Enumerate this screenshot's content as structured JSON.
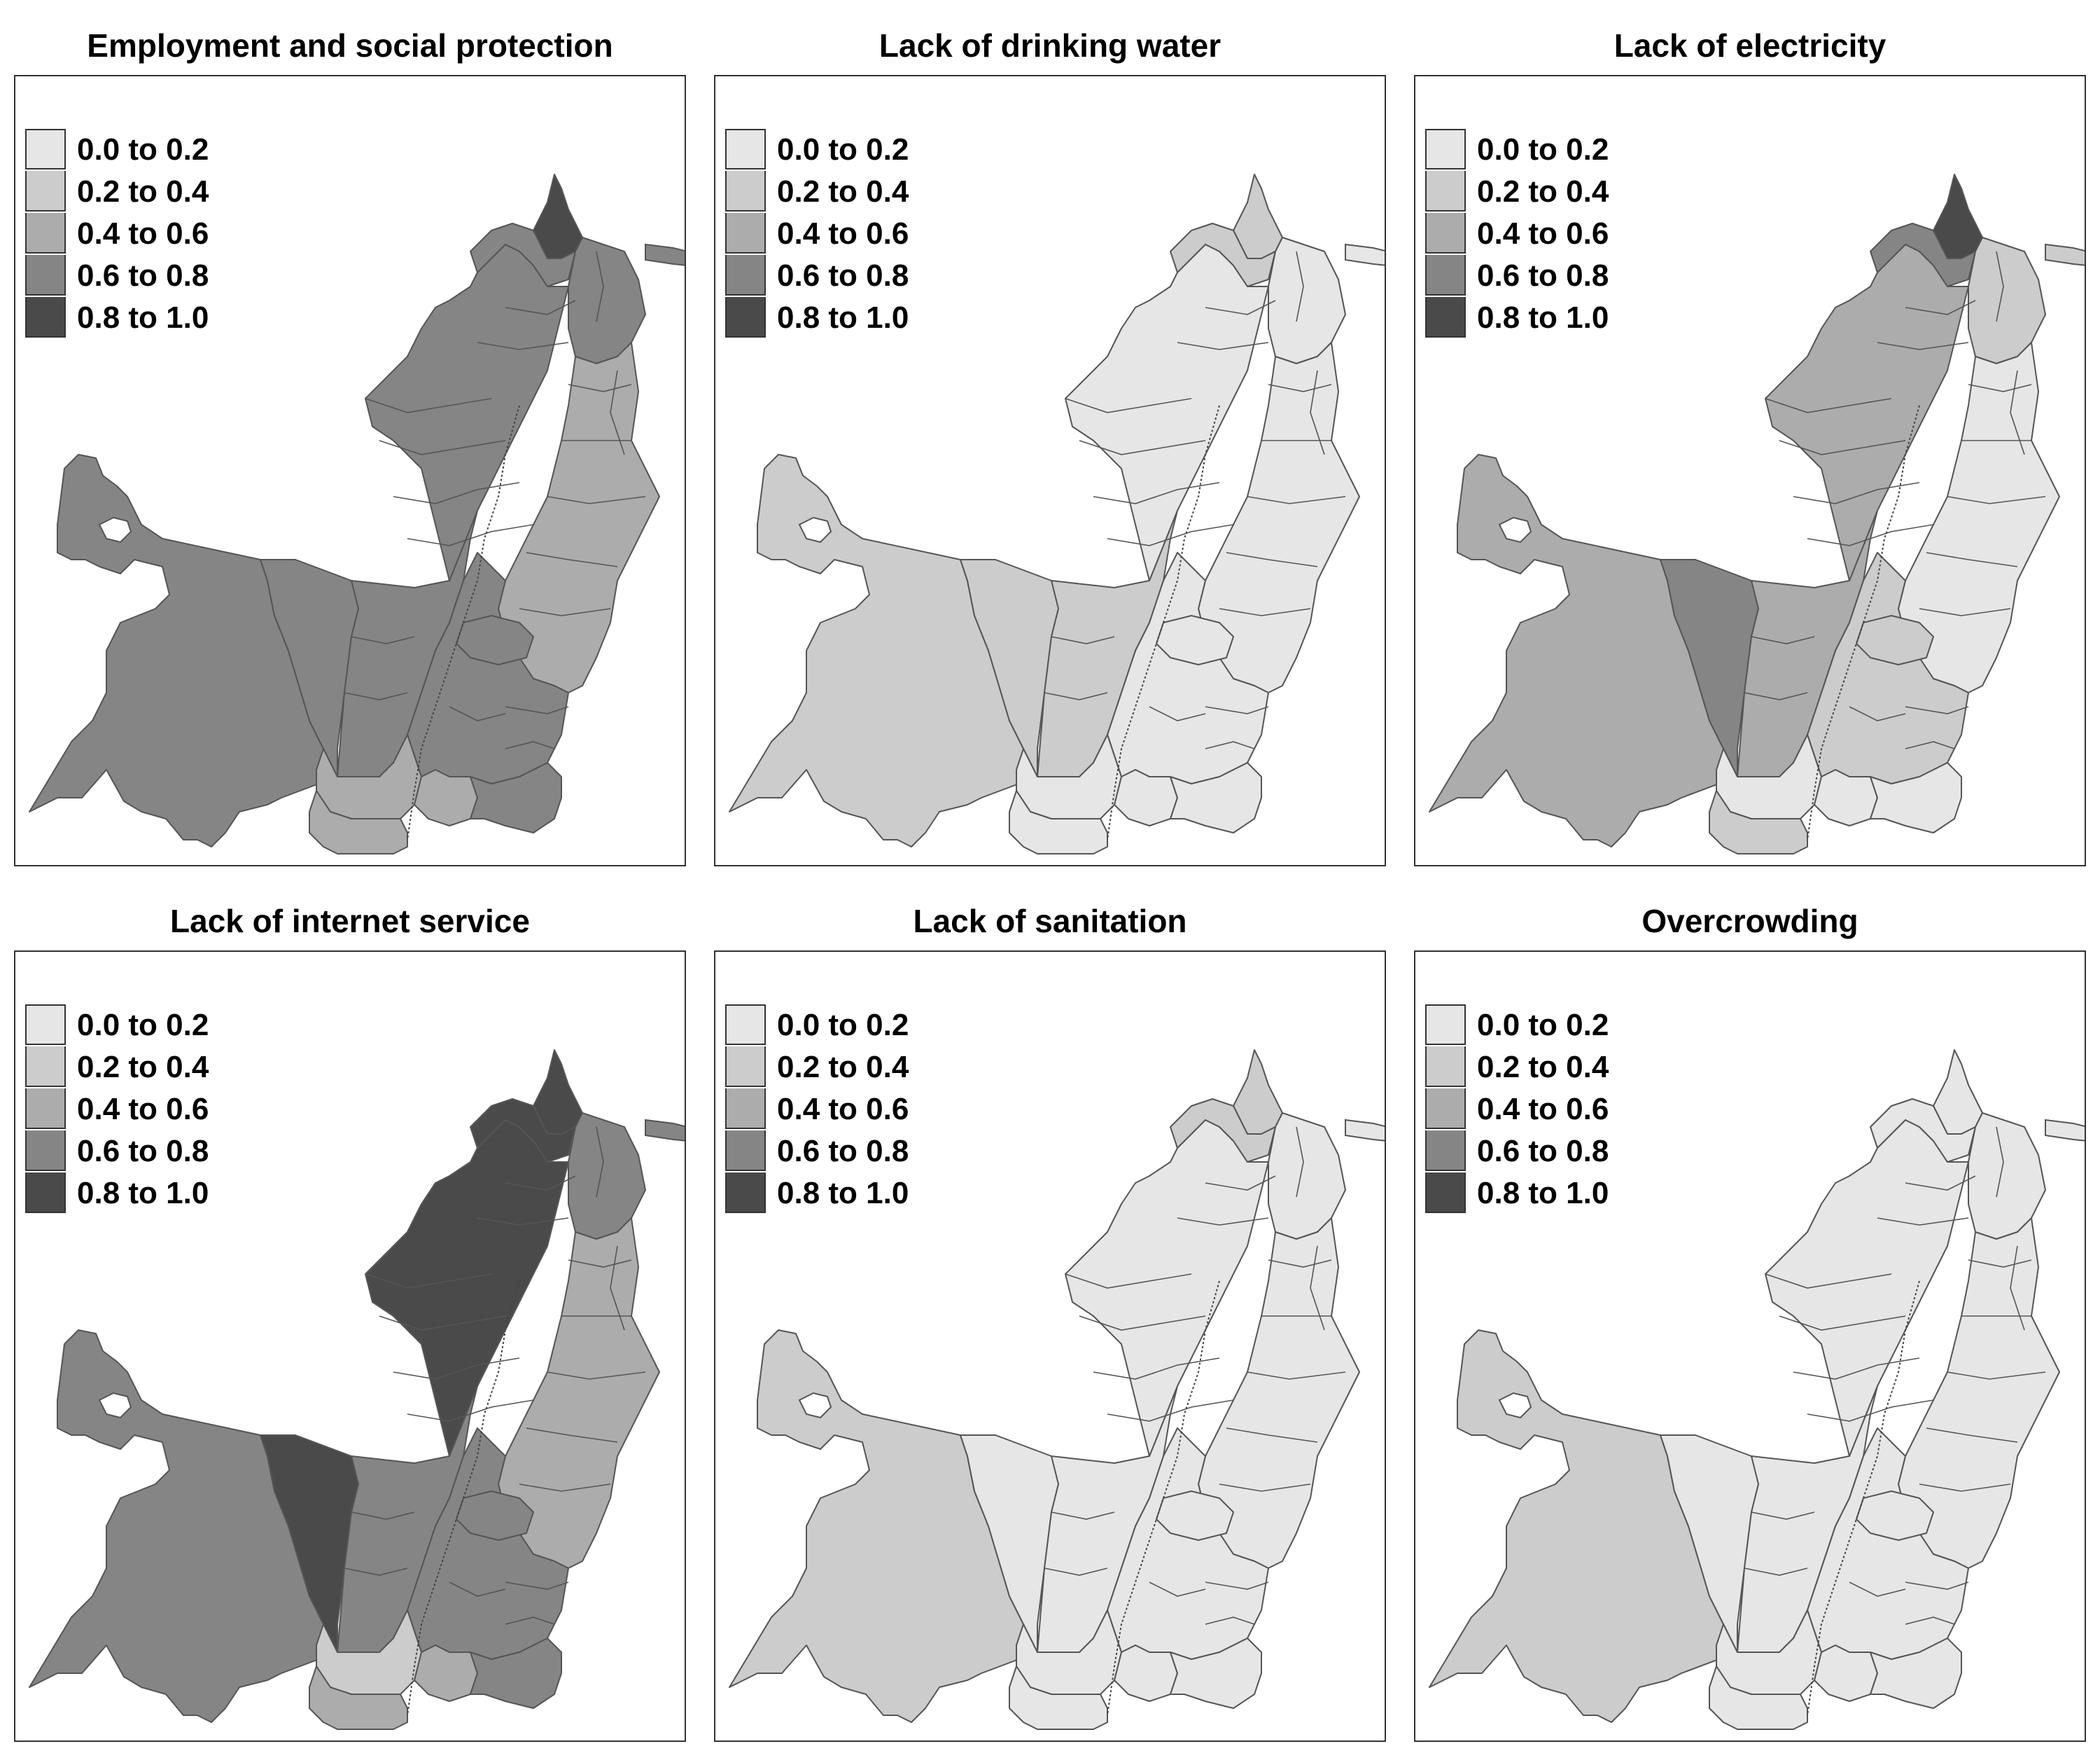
{
  "legend": {
    "classes": [
      {
        "label": "0.0 to 0.2",
        "color": "#e6e6e6"
      },
      {
        "label": "0.2 to 0.4",
        "color": "#cccccc"
      },
      {
        "label": "0.4 to 0.6",
        "color": "#acacac"
      },
      {
        "label": "0.6 to 0.8",
        "color": "#858585"
      },
      {
        "label": "0.8 to 1.0",
        "color": "#4a4a4a"
      }
    ],
    "border_color": "#555555"
  },
  "panels": [
    {
      "title": "Employment and social protection",
      "fills": {
        "west": 3,
        "central": 3,
        "narrow": 3,
        "north": 3,
        "northtip": 4,
        "northleft": 3,
        "neast": 3,
        "east": 2,
        "eastbelt": 3,
        "inner": 3,
        "south": 2,
        "southcenter": 2,
        "southeast": 3,
        "southwest": 2
      }
    },
    {
      "title": "Lack of drinking water",
      "fills": {
        "west": 1,
        "central": 1,
        "narrow": 1,
        "north": 0,
        "northtip": 1,
        "northleft": 1,
        "neast": 0,
        "east": 0,
        "eastbelt": 0,
        "inner": 0,
        "south": 0,
        "southcenter": 0,
        "southeast": 0,
        "southwest": 0
      }
    },
    {
      "title": "Lack of electricity",
      "fills": {
        "west": 2,
        "central": 3,
        "narrow": 2,
        "north": 2,
        "northtip": 4,
        "northleft": 3,
        "neast": 1,
        "east": 0,
        "eastbelt": 1,
        "inner": 1,
        "south": 0,
        "southcenter": 0,
        "southeast": 0,
        "southwest": 1
      }
    },
    {
      "title": "Lack of internet service",
      "fills": {
        "west": 3,
        "central": 4,
        "narrow": 3,
        "north": 4,
        "northtip": 4,
        "northleft": 4,
        "neast": 3,
        "east": 2,
        "eastbelt": 3,
        "inner": 3,
        "south": 1,
        "southcenter": 2,
        "southeast": 3,
        "southwest": 2
      }
    },
    {
      "title": "Lack of sanitation",
      "fills": {
        "west": 1,
        "central": 0,
        "narrow": 0,
        "north": 0,
        "northtip": 1,
        "northleft": 1,
        "neast": 0,
        "east": 0,
        "eastbelt": 0,
        "inner": 0,
        "south": 0,
        "southcenter": 0,
        "southeast": 0,
        "southwest": 0
      }
    },
    {
      "title": "Overcrowding",
      "fills": {
        "west": 1,
        "central": 0,
        "narrow": 0,
        "north": 0,
        "northtip": 0,
        "northleft": 0,
        "neast": 0,
        "east": 0,
        "eastbelt": 0,
        "inner": 0,
        "south": 0,
        "southcenter": 0,
        "southeast": 0,
        "southwest": 0
      }
    }
  ]
}
